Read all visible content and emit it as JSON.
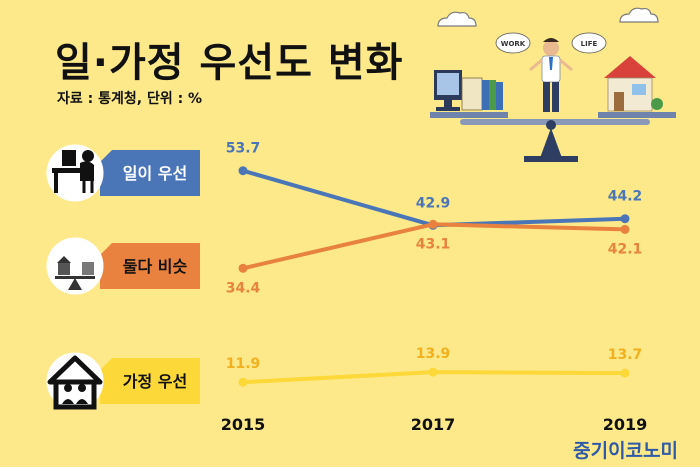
{
  "title": "일·가정 우선도 변화",
  "subtitle": "자료 : 통계청, 단위 : %",
  "brand": "중기이코노미",
  "illustration": {
    "bubble_left": "WORK",
    "bubble_right": "LIFE"
  },
  "chart_data": {
    "type": "line",
    "x": [
      "2015",
      "2017",
      "2019"
    ],
    "series": [
      {
        "name": "일이 우선",
        "values": [
          53.7,
          42.9,
          44.2
        ],
        "color": "#4a76b8",
        "icon": "worker-desk-icon"
      },
      {
        "name": "둘다 비슷",
        "values": [
          34.4,
          43.1,
          42.1
        ],
        "color": "#e8823e",
        "icon": "balance-scale-icon"
      },
      {
        "name": "가정 우선",
        "values": [
          11.9,
          13.9,
          13.7
        ],
        "color": "#fcd838",
        "icon": "family-house-icon"
      }
    ],
    "label_colors": [
      "#4a76b8",
      "#e8823e",
      "#f2b01e"
    ],
    "badge_colors": [
      "#4a76b8",
      "#e8823e",
      "#fcd838"
    ],
    "badge_text_colors": [
      "#ffffff",
      "#111111",
      "#111111"
    ]
  }
}
